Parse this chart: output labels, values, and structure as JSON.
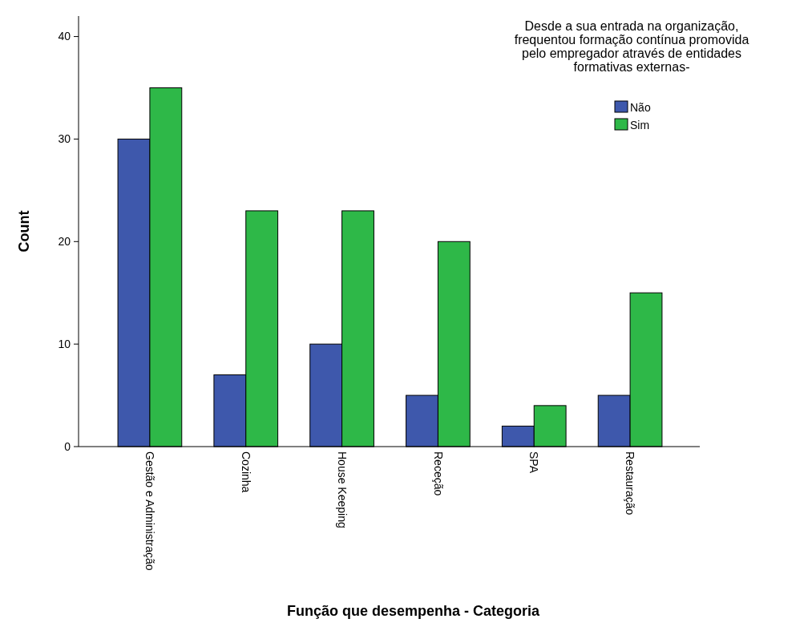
{
  "chart_data": {
    "type": "bar",
    "categories": [
      "Gestão e Administração",
      "Cozinha",
      "House Keeping",
      "Receção",
      "SPA",
      "Restauração"
    ],
    "series": [
      {
        "name": "Não",
        "color": "#3e58ac",
        "values": [
          30,
          7,
          10,
          5,
          2,
          5
        ]
      },
      {
        "name": "Sim",
        "color": "#2eb848",
        "values": [
          35,
          23,
          23,
          20,
          4,
          15
        ]
      }
    ],
    "xlabel": "Função que desempenha - Categoria",
    "ylabel": "Count",
    "legend_title": "Desde a sua entrada na organização, frequentou formação contínua promovida pelo empregador através de entidades formativas externas-",
    "ylim": [
      0,
      42
    ],
    "yticks": [
      0,
      10,
      20,
      30,
      40
    ],
    "legend": "top right",
    "grid": false
  }
}
